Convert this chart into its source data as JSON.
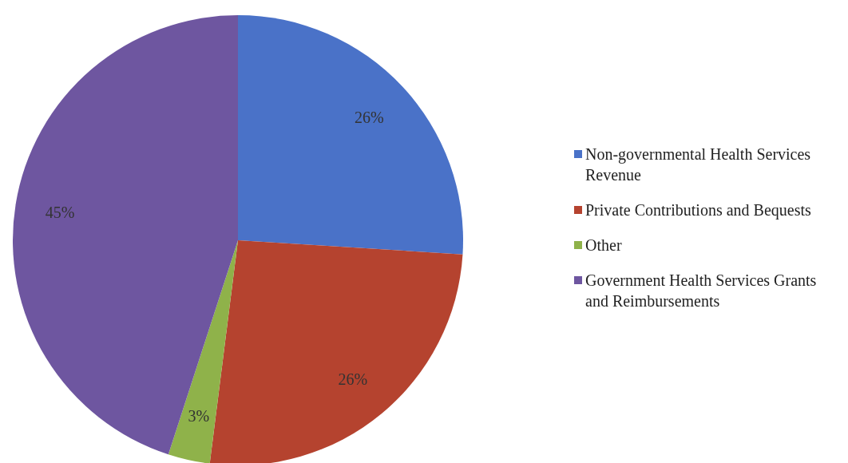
{
  "chart_data": {
    "type": "pie",
    "categories": [
      "Non-governmental Health Services Revenue",
      "Private Contributions and Bequests",
      "Other",
      "Government Health Services Grants and Reimbursements"
    ],
    "values": [
      26,
      26,
      3,
      45
    ],
    "colors": [
      "#4a72c8",
      "#b5432f",
      "#8fb24a",
      "#6e56a0"
    ],
    "value_labels": [
      "26%",
      "26%",
      "3%",
      "45%"
    ],
    "legend": "right"
  }
}
